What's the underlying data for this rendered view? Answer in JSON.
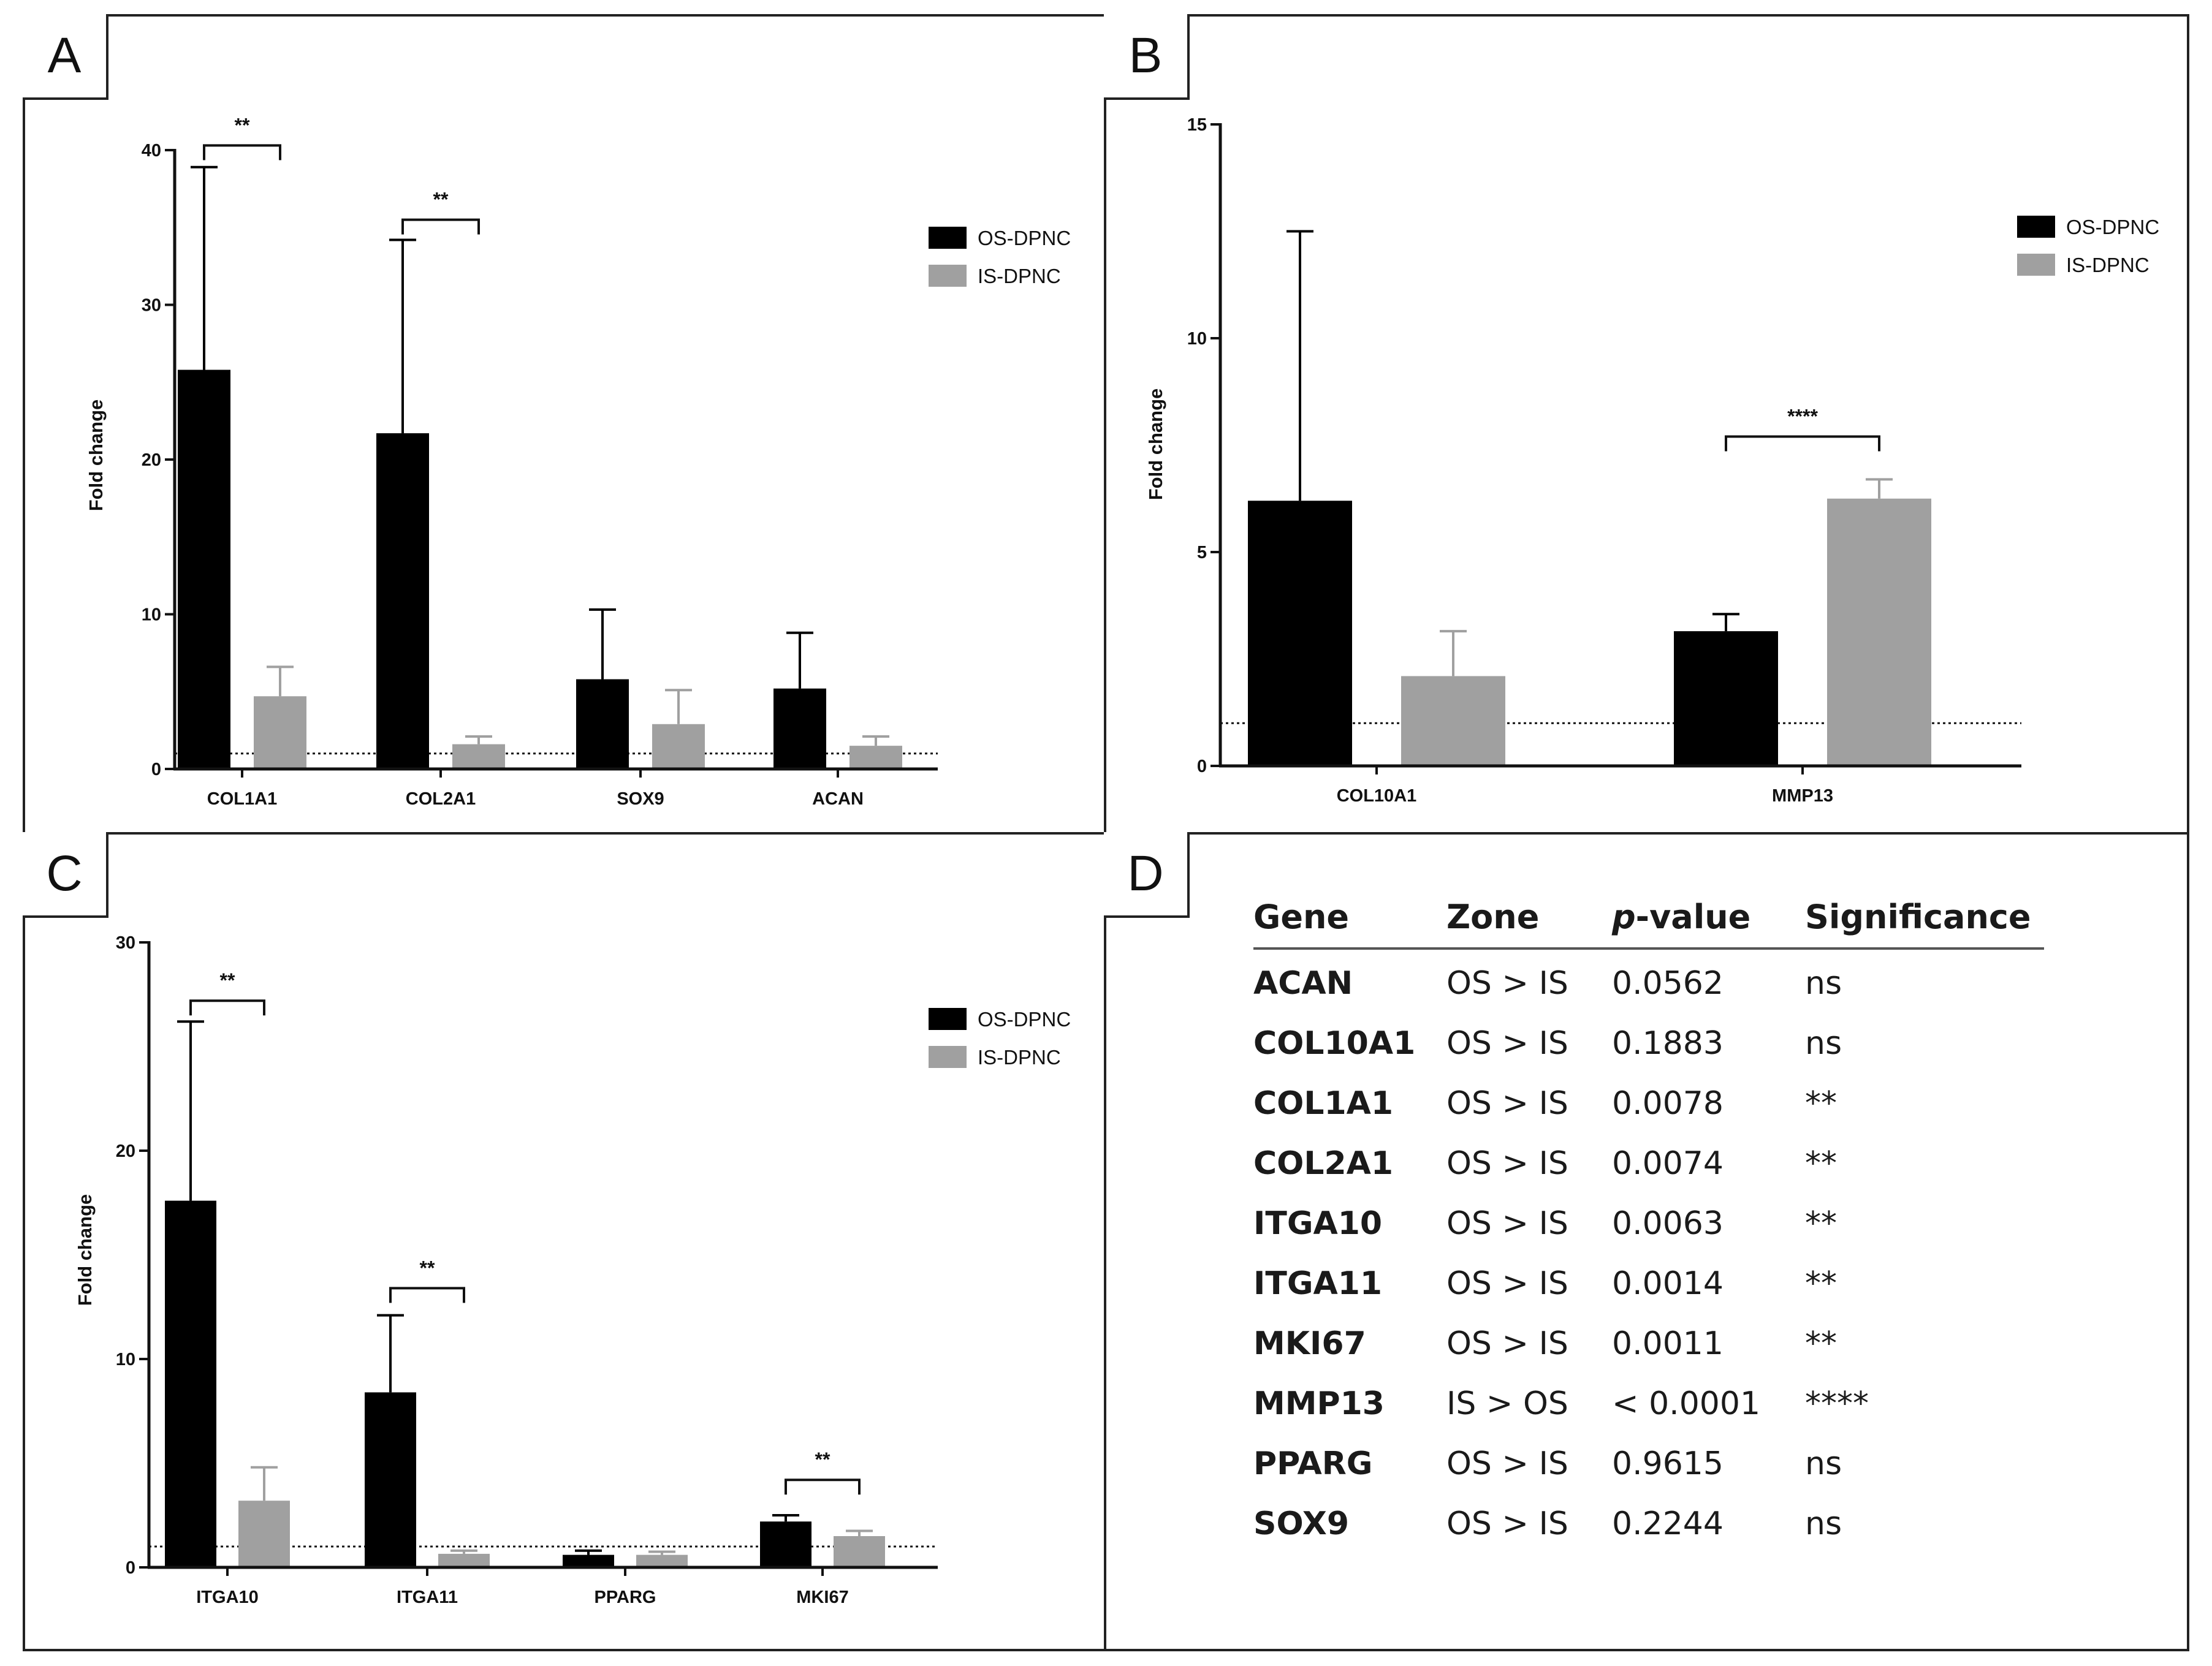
{
  "chart_data": [
    {
      "panel": "A",
      "type": "bar",
      "categories": [
        "COL1A1",
        "COL2A1",
        "SOX9",
        "ACAN"
      ],
      "series": [
        {
          "name": "OS-DPNC",
          "color": "#000000",
          "values": [
            25.8,
            21.7,
            5.8,
            5.2
          ],
          "errors": [
            13.1,
            12.5,
            4.5,
            3.6
          ]
        },
        {
          "name": "IS-DPNC",
          "color": "#a0a0a0",
          "values": [
            4.7,
            1.6,
            2.9,
            1.5
          ],
          "errors": [
            1.9,
            0.5,
            2.2,
            0.6
          ]
        }
      ],
      "ylabel": "Fold change",
      "ylim": [
        0,
        40
      ],
      "yticks": [
        0,
        10,
        20,
        30,
        40
      ],
      "baseline": 1,
      "significance": [
        {
          "category": "COL1A1",
          "label": "**",
          "level": 40.3
        },
        {
          "category": "COL2A1",
          "label": "**",
          "level": 35.5
        }
      ]
    },
    {
      "panel": "B",
      "type": "bar",
      "categories": [
        "COL10A1",
        "MMP13"
      ],
      "series": [
        {
          "name": "OS-DPNC",
          "color": "#000000",
          "values": [
            6.2,
            3.15
          ],
          "errors": [
            6.3,
            0.4
          ]
        },
        {
          "name": "IS-DPNC",
          "color": "#a0a0a0",
          "values": [
            2.1,
            6.25
          ],
          "errors": [
            1.05,
            0.45
          ]
        }
      ],
      "ylabel": "Fold change",
      "ylim": [
        0,
        15
      ],
      "yticks": [
        0,
        5,
        10,
        15
      ],
      "baseline": 1,
      "significance": [
        {
          "category": "MMP13",
          "label": "****",
          "level": 7.7
        }
      ]
    },
    {
      "panel": "C",
      "type": "bar",
      "categories": [
        "ITGA10",
        "ITGA11",
        "PPARG",
        "MKI67"
      ],
      "series": [
        {
          "name": "OS-DPNC",
          "color": "#000000",
          "values": [
            17.6,
            8.4,
            0.6,
            2.2
          ],
          "errors": [
            8.6,
            3.7,
            0.2,
            0.3
          ]
        },
        {
          "name": "IS-DPNC",
          "color": "#a0a0a0",
          "values": [
            3.2,
            0.65,
            0.6,
            1.5
          ],
          "errors": [
            1.6,
            0.15,
            0.15,
            0.25
          ]
        }
      ],
      "ylabel": "Fold change",
      "ylim": [
        0,
        30
      ],
      "yticks": [
        0,
        10,
        20,
        30
      ],
      "baseline": 1,
      "significance": [
        {
          "category": "ITGA10",
          "label": "**",
          "level": 27.2
        },
        {
          "category": "ITGA11",
          "label": "**",
          "level": 13.4
        },
        {
          "category": "MKI67",
          "label": "**",
          "level": 4.2
        }
      ]
    }
  ],
  "panel_d": {
    "letter": "D",
    "headers": {
      "gene": "Gene",
      "zone": "Zone",
      "p_prefix": "p",
      "p_suffix": "-value",
      "significance": "Significance"
    },
    "rows": [
      {
        "gene": "ACAN",
        "zone": "OS > IS",
        "p": "0.0562",
        "sig": "ns"
      },
      {
        "gene": "COL10A1",
        "zone": "OS > IS",
        "p": "0.1883",
        "sig": "ns"
      },
      {
        "gene": "COL1A1",
        "zone": "OS > IS",
        "p": "0.0078",
        "sig": "**"
      },
      {
        "gene": "COL2A1",
        "zone": "OS > IS",
        "p": "0.0074",
        "sig": "**"
      },
      {
        "gene": "ITGA10",
        "zone": "OS > IS",
        "p": "0.0063",
        "sig": "**"
      },
      {
        "gene": "ITGA11",
        "zone": "OS > IS",
        "p": "0.0014",
        "sig": "**"
      },
      {
        "gene": "MKI67",
        "zone": "OS > IS",
        "p": "0.0011",
        "sig": "**"
      },
      {
        "gene": "MMP13",
        "zone": "IS > OS",
        "p": "< 0.0001",
        "sig": "****"
      },
      {
        "gene": "PPARG",
        "zone": "OS > IS",
        "p": "0.9615",
        "sig": "ns"
      },
      {
        "gene": "SOX9",
        "zone": "OS > IS",
        "p": "0.2244",
        "sig": "ns"
      }
    ]
  }
}
